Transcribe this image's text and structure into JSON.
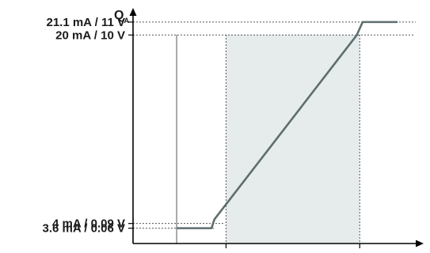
{
  "chart_data": {
    "type": "line",
    "title": "",
    "ylabel": "Q",
    "ylabel_subscript": "A",
    "xlabel": "",
    "y_levels": [
      {
        "key": "sat_low",
        "label": "3.6 mA / 0.06 V",
        "mA": 3.6
      },
      {
        "key": "low",
        "label": "4 mA / 0.09 V",
        "mA": 4.0
      },
      {
        "key": "high",
        "label": "20 mA / 10 V",
        "mA": 20.0
      },
      {
        "key": "sat_high",
        "label": "21.1 mA / 11 V",
        "mA": 21.1
      }
    ],
    "ylim": [
      2.3,
      22.3
    ],
    "xlim": [
      0,
      100
    ],
    "x_reference_lines": [
      15,
      32,
      78
    ],
    "shaded_range": [
      32,
      78
    ],
    "series": [
      {
        "points": [
          {
            "x": 15,
            "y": 3.6
          },
          {
            "x": 27,
            "y": 3.6
          },
          {
            "x": 28,
            "y": 4.35
          },
          {
            "x": 77,
            "y": 20.0
          },
          {
            "x": 79,
            "y": 21.1
          },
          {
            "x": 91,
            "y": 21.1
          }
        ]
      }
    ],
    "colors": {
      "line": "#5e6e6e",
      "shade": "#e6ebeb",
      "axis": "#000000",
      "grid": "#555555"
    },
    "grid": false
  }
}
